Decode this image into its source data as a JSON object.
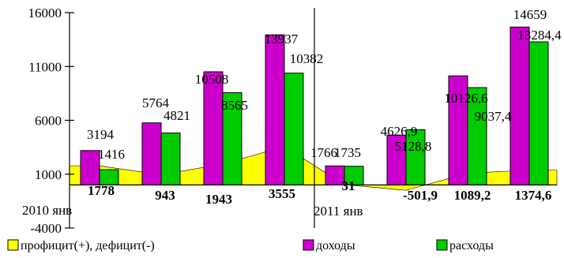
{
  "chart_data": {
    "type": "bar",
    "title": "",
    "xlabel": "",
    "ylabel": "",
    "ylim": [
      -4000,
      16000
    ],
    "yticks": [
      -4000,
      1000,
      6000,
      11000,
      16000
    ],
    "grid": false,
    "legend_position": "bottom",
    "period_labels": [
      "2010 янв",
      "2011 янв"
    ],
    "categories": [
      "",
      "",
      "",
      "",
      "",
      "",
      "",
      ""
    ],
    "series": [
      {
        "name": "доходы",
        "chart_type": "bar",
        "color": "#CC00CC",
        "values": [
          3194,
          5764,
          10508,
          13937,
          1766,
          4626.9,
          10126.6,
          14659
        ],
        "labels": [
          "3194",
          "5764",
          "10508",
          "13937",
          "1766",
          "4626,9",
          "10126,6",
          "14659"
        ]
      },
      {
        "name": "расходы",
        "chart_type": "bar",
        "color": "#00CC00",
        "values": [
          1416,
          4821,
          8565,
          10382,
          1735,
          5128.8,
          9037.4,
          13284.4
        ],
        "labels": [
          "1416",
          "4821",
          "8565",
          "10382",
          "1735",
          "5128,8",
          "9037,4",
          "13284,4"
        ]
      },
      {
        "name": "профицит(+), дефицит(-)",
        "chart_type": "area",
        "color": "#FFFF00",
        "values": [
          1778,
          943,
          1943,
          3555,
          31,
          -501.9,
          1089.2,
          1374.6
        ],
        "labels": [
          "1778",
          "943",
          "1943",
          "3555",
          "31",
          "-501,9",
          "1089,2",
          "1374,6"
        ]
      }
    ]
  }
}
